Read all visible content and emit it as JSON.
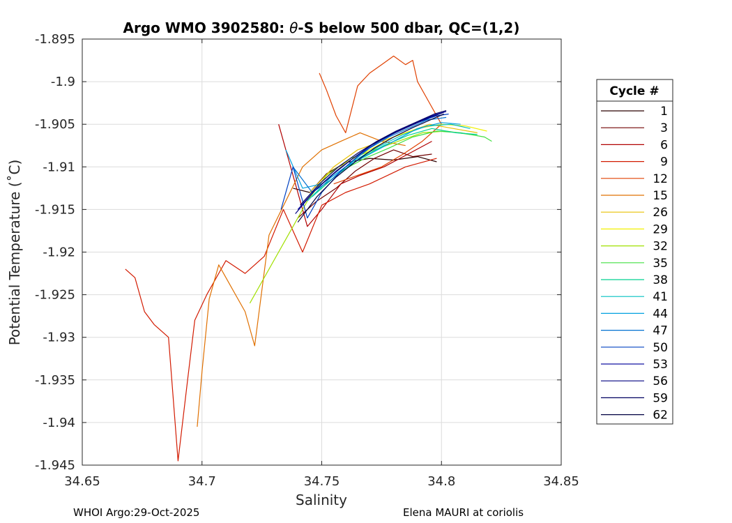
{
  "chart_data": {
    "type": "line",
    "title_prefix": "Argo WMO 3902580: ",
    "title_theta": "θ",
    "title_suffix": "-S below 500 dbar,  QC=(1,2)",
    "xlabel": "Salinity",
    "ylabel": "Potential Temperature (˚C)",
    "xlim": [
      34.65,
      34.85
    ],
    "ylim": [
      -1.945,
      -1.895
    ],
    "xticks": [
      34.65,
      34.7,
      34.75,
      34.8,
      34.85
    ],
    "xtick_labels": [
      "34.65",
      "34.7",
      "34.75",
      "34.8",
      "34.85"
    ],
    "yticks": [
      -1.895,
      -1.9,
      -1.905,
      -1.91,
      -1.915,
      -1.92,
      -1.925,
      -1.93,
      -1.935,
      -1.94,
      -1.945
    ],
    "ytick_labels": [
      "-1.895",
      "-1.9",
      "-1.905",
      "-1.91",
      "-1.915",
      "-1.92",
      "-1.925",
      "-1.93",
      "-1.935",
      "-1.94",
      "-1.945"
    ],
    "grid": true,
    "legend_title": "Cycle #",
    "legend_position": "outside-right",
    "series": [
      {
        "name": "1",
        "color": "#2b0000",
        "style": "solid",
        "x": [
          34.738,
          34.745,
          34.752,
          34.76,
          34.77,
          34.78,
          34.79,
          34.798
        ],
        "y": [
          -1.9125,
          -1.913,
          -1.9108,
          -1.9095,
          -1.909,
          -1.9092,
          -1.9088,
          -1.9094
        ]
      },
      {
        "name": "3",
        "color": "#700000",
        "style": "solid",
        "x": [
          34.74,
          34.748,
          34.756,
          34.764,
          34.772,
          34.78,
          34.788,
          34.796
        ],
        "y": [
          -1.916,
          -1.914,
          -1.9125,
          -1.9105,
          -1.909,
          -1.908,
          -1.9088,
          -1.9085
        ]
      },
      {
        "name": "6",
        "color": "#b00000",
        "style": "solid",
        "x": [
          34.732,
          34.738,
          34.744,
          34.75,
          34.758,
          34.766,
          34.776,
          34.786,
          34.796
        ],
        "y": [
          -1.905,
          -1.911,
          -1.917,
          -1.915,
          -1.912,
          -1.911,
          -1.91,
          -1.9085,
          -1.907
        ]
      },
      {
        "name": "9",
        "color": "#d21a00",
        "style": "solid",
        "x": [
          34.668,
          34.672,
          34.676,
          34.68,
          34.686,
          34.69,
          34.694,
          34.697,
          34.702,
          34.71,
          34.718,
          34.726,
          34.734,
          34.742,
          34.75,
          34.76,
          34.77,
          34.785,
          34.798
        ],
        "y": [
          -1.922,
          -1.923,
          -1.927,
          -1.9285,
          -1.93,
          -1.9445,
          -1.935,
          -1.928,
          -1.925,
          -1.921,
          -1.9225,
          -1.9205,
          -1.915,
          -1.92,
          -1.9145,
          -1.913,
          -1.912,
          -1.91,
          -1.909
        ]
      },
      {
        "name": "12",
        "color": "#e04000",
        "style": "solid",
        "x": [
          34.749,
          34.752,
          34.756,
          34.76,
          34.765,
          34.77,
          34.775,
          34.78,
          34.785,
          34.788,
          34.79,
          34.794,
          34.8,
          34.792,
          34.784,
          34.775,
          34.765,
          34.755
        ],
        "y": [
          -1.899,
          -1.901,
          -1.904,
          -1.906,
          -1.9005,
          -1.899,
          -1.898,
          -1.897,
          -1.898,
          -1.8975,
          -1.9,
          -1.902,
          -1.905,
          -1.907,
          -1.9085,
          -1.91,
          -1.911,
          -1.912
        ]
      },
      {
        "name": "15",
        "color": "#e07000",
        "style": "solid",
        "x": [
          34.698,
          34.7,
          34.703,
          34.707,
          34.712,
          34.718,
          34.722,
          34.728,
          34.735,
          34.742,
          34.75,
          34.758,
          34.766,
          34.775,
          34.785
        ],
        "y": [
          -1.9405,
          -1.934,
          -1.9255,
          -1.9215,
          -1.924,
          -1.927,
          -1.931,
          -1.918,
          -1.914,
          -1.91,
          -1.908,
          -1.907,
          -1.906,
          -1.907,
          -1.9075
        ]
      },
      {
        "name": "26",
        "color": "#e8c000",
        "style": "solid",
        "x": [
          34.745,
          34.755,
          34.765,
          34.775,
          34.785,
          34.795,
          34.805,
          34.815
        ],
        "y": [
          -1.913,
          -1.91,
          -1.908,
          -1.907,
          -1.906,
          -1.905,
          -1.9055,
          -1.906
        ]
      },
      {
        "name": "29",
        "color": "#f2f000",
        "style": "solid",
        "x": [
          34.75,
          34.76,
          34.77,
          34.78,
          34.79,
          34.8,
          34.81,
          34.819
        ],
        "y": [
          -1.912,
          -1.9095,
          -1.908,
          -1.9065,
          -1.9055,
          -1.905,
          -1.9052,
          -1.9058
        ]
      },
      {
        "name": "32",
        "color": "#a0e000",
        "style": "solid",
        "x": [
          34.72,
          34.728,
          34.736,
          34.744,
          34.752,
          34.762,
          34.772,
          34.782,
          34.792,
          34.802,
          34.812
        ],
        "y": [
          -1.926,
          -1.922,
          -1.918,
          -1.914,
          -1.911,
          -1.909,
          -1.908,
          -1.907,
          -1.906,
          -1.9058,
          -1.9062
        ]
      },
      {
        "name": "35",
        "color": "#40e040",
        "style": "solid",
        "x": [
          34.748,
          34.758,
          34.768,
          34.778,
          34.788,
          34.798,
          34.808,
          34.818,
          34.821
        ],
        "y": [
          -1.913,
          -1.9105,
          -1.909,
          -1.9078,
          -1.9065,
          -1.9058,
          -1.906,
          -1.9065,
          -1.907
        ]
      },
      {
        "name": "38",
        "color": "#00d090",
        "style": "solid",
        "x": [
          34.746,
          34.756,
          34.766,
          34.776,
          34.786,
          34.796,
          34.806,
          34.815
        ],
        "y": [
          -1.9135,
          -1.911,
          -1.909,
          -1.9075,
          -1.9063,
          -1.9055,
          -1.906,
          -1.9062
        ]
      },
      {
        "name": "41",
        "color": "#00c0c0",
        "style": "solid",
        "x": [
          34.744,
          34.754,
          34.764,
          34.774,
          34.784,
          34.794,
          34.804,
          34.812
        ],
        "y": [
          -1.914,
          -1.9112,
          -1.9092,
          -1.9076,
          -1.9062,
          -1.9052,
          -1.905,
          -1.9055
        ]
      },
      {
        "name": "44",
        "color": "#00a0e0",
        "style": "solid",
        "x": [
          34.735,
          34.742,
          34.75,
          34.76,
          34.77,
          34.78,
          34.79,
          34.8,
          34.808
        ],
        "y": [
          -1.908,
          -1.9125,
          -1.912,
          -1.91,
          -1.9085,
          -1.907,
          -1.9055,
          -1.9048,
          -1.905
        ]
      },
      {
        "name": "47",
        "color": "#0070d0",
        "style": "solid",
        "x": [
          34.738,
          34.746,
          34.754,
          34.762,
          34.77,
          34.778,
          34.786,
          34.794,
          34.802
        ],
        "y": [
          -1.91,
          -1.913,
          -1.9115,
          -1.9095,
          -1.9078,
          -1.9065,
          -1.9055,
          -1.9045,
          -1.9042
        ]
      },
      {
        "name": "50",
        "color": "#0040c0",
        "style": "solid",
        "x": [
          34.733,
          34.738,
          34.744,
          34.75,
          34.758,
          34.766,
          34.774,
          34.782,
          34.79,
          34.798,
          34.803
        ],
        "y": [
          -1.915,
          -1.91,
          -1.916,
          -1.913,
          -1.9105,
          -1.9085,
          -1.907,
          -1.9058,
          -1.9048,
          -1.904,
          -1.9038
        ]
      },
      {
        "name": "53",
        "color": "#1010a0",
        "style": "solid",
        "x": [
          34.74,
          34.748,
          34.756,
          34.764,
          34.772,
          34.78,
          34.788,
          34.796,
          34.802
        ],
        "y": [
          -1.915,
          -1.9125,
          -1.9105,
          -1.9088,
          -1.9072,
          -1.906,
          -1.905,
          -1.904,
          -1.9035
        ]
      },
      {
        "name": "56",
        "color": "#000080",
        "style": "solid",
        "x": [
          34.739,
          34.747,
          34.755,
          34.763,
          34.771,
          34.779,
          34.787,
          34.795,
          34.801
        ],
        "y": [
          -1.9155,
          -1.9128,
          -1.9108,
          -1.909,
          -1.9074,
          -1.9062,
          -1.9052,
          -1.9042,
          -1.9036
        ]
      },
      {
        "name": "59",
        "color": "#000060",
        "style": "solid",
        "x": [
          34.741,
          34.749,
          34.757,
          34.765,
          34.773,
          34.781,
          34.789,
          34.797,
          34.802
        ],
        "y": [
          -1.9145,
          -1.912,
          -1.91,
          -1.9084,
          -1.907,
          -1.9058,
          -1.9048,
          -1.9038,
          -1.9034
        ]
      },
      {
        "name": "62",
        "color": "#000040",
        "style": "solid",
        "x": [
          34.74,
          34.748,
          34.756,
          34.764,
          34.772,
          34.78,
          34.788,
          34.796,
          34.801
        ],
        "y": [
          -1.9165,
          -1.9135,
          -1.9112,
          -1.9094,
          -1.9078,
          -1.9065,
          -1.9054,
          -1.9044,
          -1.9038
        ]
      }
    ]
  },
  "footer": {
    "left": "WHOI Argo:29-Oct-2025",
    "right": "Elena MAURI at coriolis"
  }
}
